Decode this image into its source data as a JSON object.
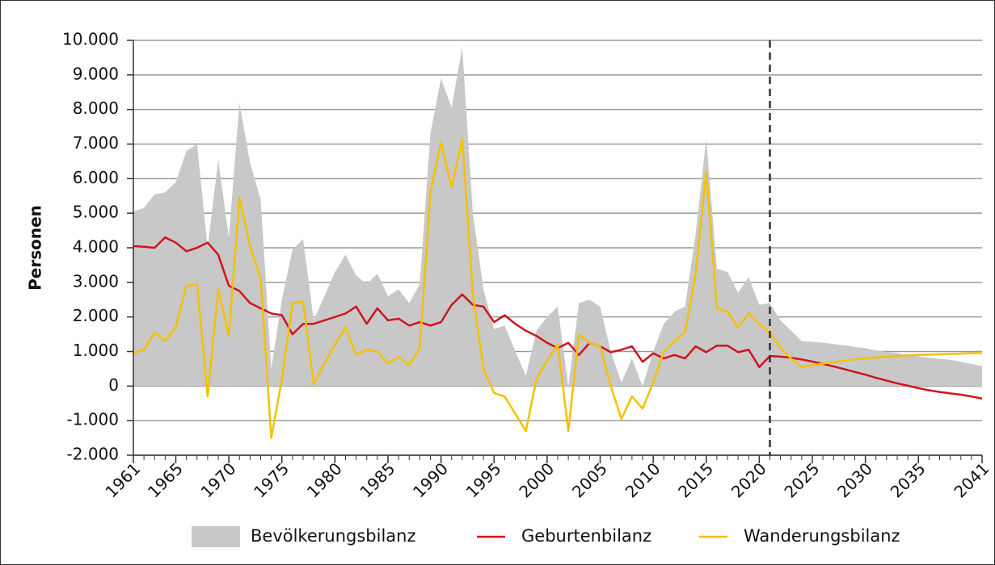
{
  "chart_data": {
    "type": "line",
    "y_label": "Personen",
    "x": [
      1961,
      1962,
      1963,
      1964,
      1965,
      1966,
      1967,
      1968,
      1969,
      1970,
      1971,
      1972,
      1973,
      1974,
      1975,
      1976,
      1977,
      1978,
      1979,
      1980,
      1981,
      1982,
      1983,
      1984,
      1985,
      1986,
      1987,
      1988,
      1989,
      1990,
      1991,
      1992,
      1993,
      1994,
      1995,
      1996,
      1997,
      1998,
      1999,
      2000,
      2001,
      2002,
      2003,
      2004,
      2005,
      2006,
      2007,
      2008,
      2009,
      2010,
      2011,
      2012,
      2013,
      2014,
      2015,
      2016,
      2017,
      2018,
      2019,
      2020,
      2021,
      2022,
      2023,
      2024,
      2025,
      2026,
      2027,
      2028,
      2029,
      2030,
      2031,
      2032,
      2033,
      2034,
      2035,
      2036,
      2037,
      2038,
      2039,
      2040,
      2041
    ],
    "series": [
      {
        "name": "Bevölkerungsbilanz",
        "type": "area",
        "color": "#c8c8c8",
        "values": [
          5050,
          5150,
          5550,
          5600,
          5900,
          6800,
          7000,
          4000,
          6550,
          4300,
          8200,
          6450,
          5400,
          500,
          2500,
          3950,
          4250,
          1900,
          2600,
          3300,
          3800,
          3200,
          2950,
          3250,
          2600,
          2800,
          2400,
          2950,
          7300,
          8900,
          8050,
          9800,
          5000,
          2800,
          1650,
          1750,
          1000,
          300,
          1600,
          2000,
          2300,
          0,
          2400,
          2500,
          2300,
          1000,
          100,
          800,
          0,
          1000,
          1800,
          2150,
          2300,
          4400,
          7150,
          3400,
          3300,
          2700,
          3150,
          2350,
          2400,
          1900,
          1600,
          1300,
          1280,
          1250,
          1220,
          1180,
          1130,
          1100,
          1030,
          990,
          950,
          900,
          860,
          820,
          790,
          760,
          700,
          640,
          580
        ]
      },
      {
        "name": "Geburtenbilanz",
        "type": "line",
        "color": "#d0141e",
        "values": [
          4050,
          4030,
          4000,
          4300,
          4150,
          3900,
          4000,
          4150,
          3800,
          2900,
          2750,
          2400,
          2250,
          2100,
          2050,
          1500,
          1800,
          1800,
          1900,
          2000,
          2100,
          2300,
          1800,
          2250,
          1900,
          1950,
          1750,
          1850,
          1750,
          1850,
          2350,
          2650,
          2350,
          2300,
          1850,
          2050,
          1800,
          1600,
          1450,
          1250,
          1100,
          1250,
          900,
          1250,
          1150,
          980,
          1050,
          1150,
          700,
          950,
          800,
          900,
          800,
          1150,
          980,
          1170,
          1170,
          980,
          1050,
          550,
          870,
          850,
          820,
          770,
          710,
          640,
          570,
          490,
          410,
          330,
          240,
          160,
          80,
          10,
          -60,
          -120,
          -170,
          -210,
          -250,
          -300,
          -360
        ]
      },
      {
        "name": "Wanderungsbilanz",
        "type": "line",
        "color": "#f5c000",
        "values": [
          950,
          1050,
          1550,
          1300,
          1700,
          2900,
          2950,
          -300,
          2800,
          1450,
          5450,
          4050,
          3100,
          -1500,
          200,
          2400,
          2450,
          50,
          650,
          1200,
          1700,
          900,
          1050,
          1000,
          650,
          850,
          600,
          1100,
          5600,
          7050,
          5750,
          7150,
          2650,
          500,
          -200,
          -300,
          -800,
          -1300,
          200,
          750,
          1200,
          -1300,
          1500,
          1250,
          1150,
          0,
          -950,
          -300,
          -650,
          100,
          1000,
          1300,
          1550,
          3250,
          6200,
          2250,
          2150,
          1700,
          2100,
          1800,
          1550,
          1100,
          800,
          550,
          600,
          650,
          700,
          730,
          780,
          800,
          830,
          850,
          870,
          890,
          900,
          910,
          920,
          930,
          940,
          950,
          960
        ]
      }
    ],
    "xlim": [
      1961,
      2041
    ],
    "xticks": [
      1961,
      1965,
      1970,
      1975,
      1980,
      1985,
      1990,
      1995,
      2000,
      2005,
      2010,
      2015,
      2020,
      2025,
      2030,
      2035,
      2041
    ],
    "ylim": [
      -2000,
      10000
    ],
    "yticks": [
      {
        "value": -2000,
        "label": "-2.000"
      },
      {
        "value": -1000,
        "label": "-1.000"
      },
      0,
      {
        "value": 1000,
        "label": "1.000"
      },
      {
        "value": 2000,
        "label": "2.000"
      },
      {
        "value": 3000,
        "label": "3.000"
      },
      {
        "value": 4000,
        "label": "4.000"
      },
      {
        "value": 5000,
        "label": "5.000"
      },
      {
        "value": 6000,
        "label": "6.000"
      },
      {
        "value": 7000,
        "label": "7.000"
      },
      {
        "value": 8000,
        "label": "8.000"
      },
      {
        "value": 9000,
        "label": "9.000"
      },
      {
        "value": 10000,
        "label": "10.000"
      }
    ],
    "grid": true,
    "projection_start": 2021,
    "legend": "bottom"
  }
}
